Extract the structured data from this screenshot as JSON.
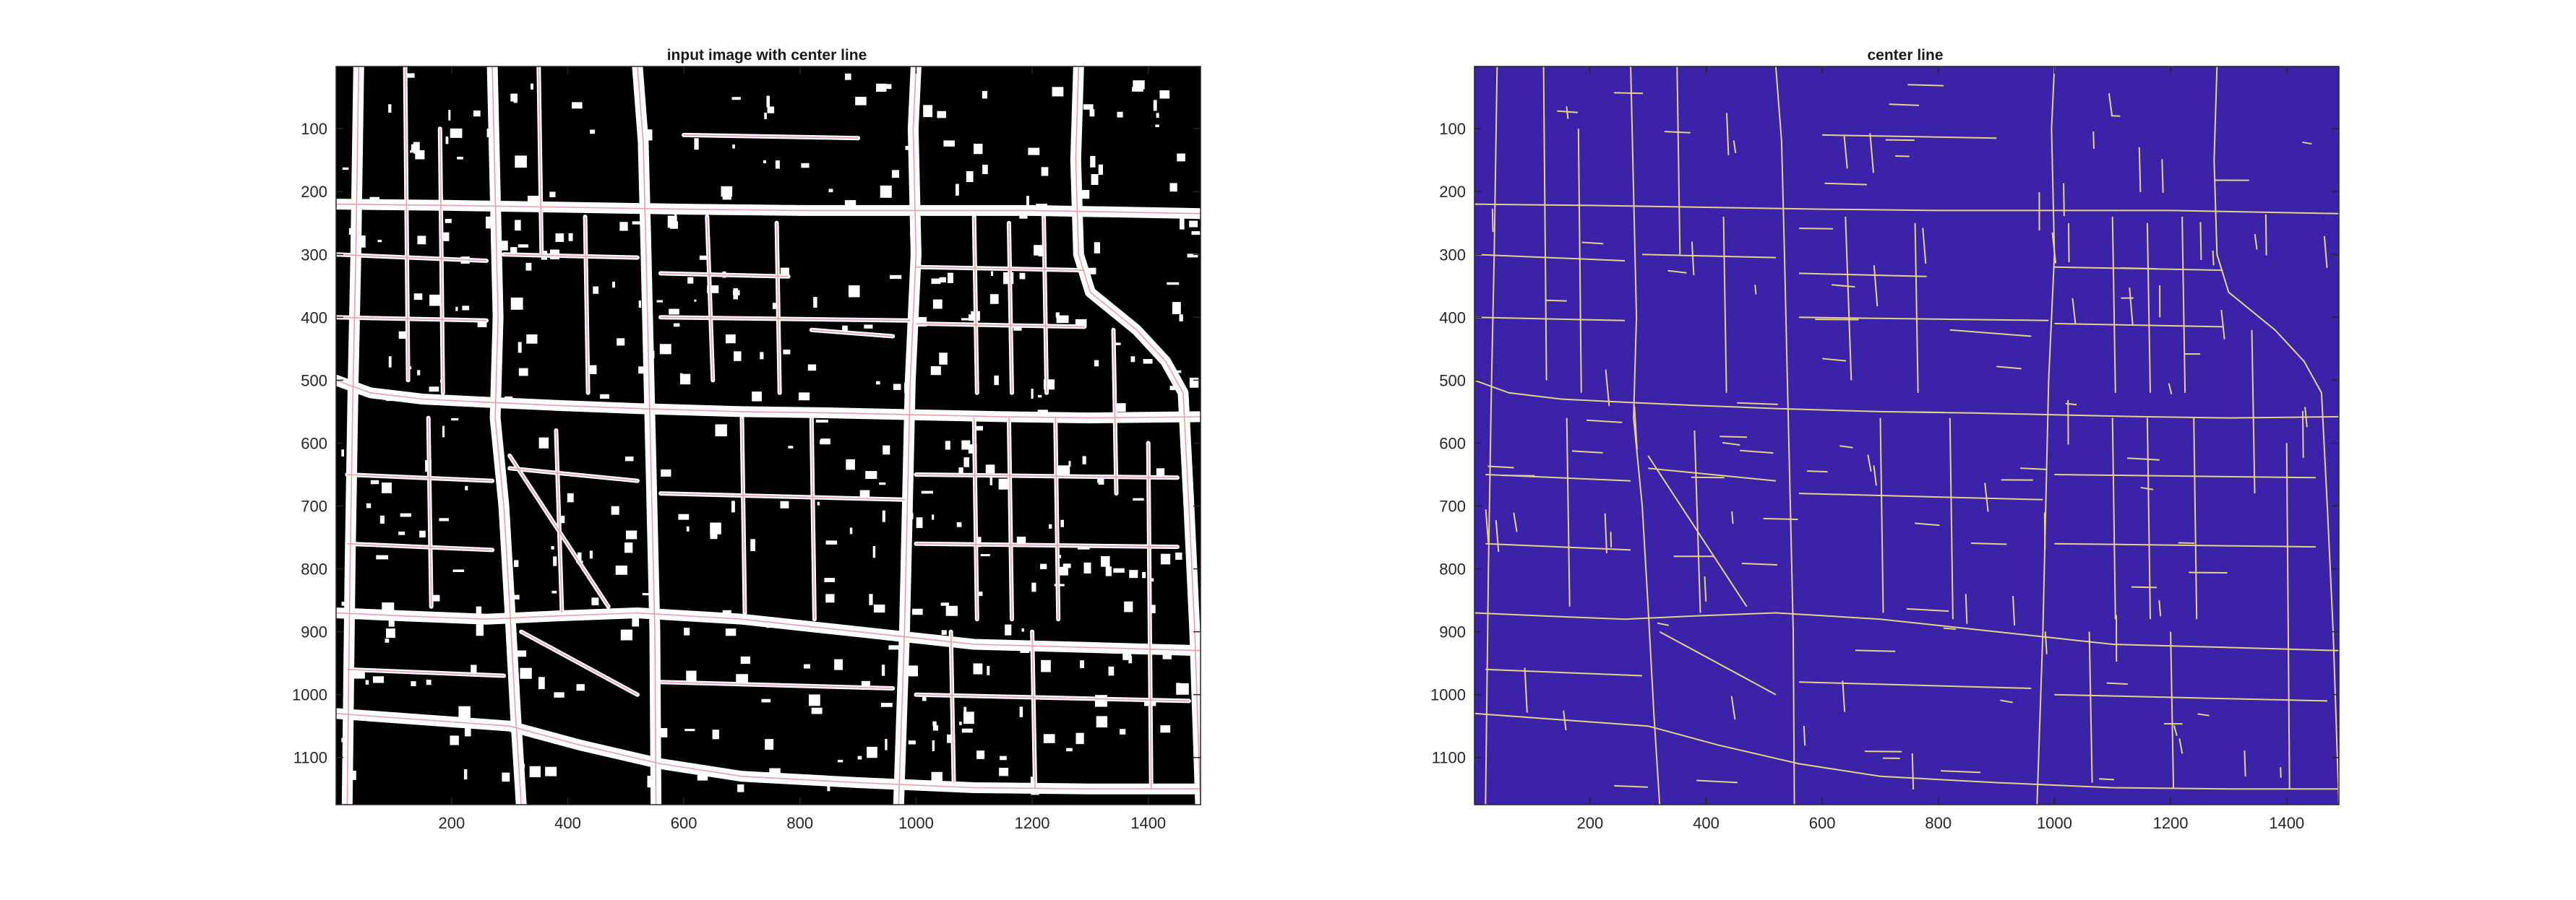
{
  "figure": {
    "background": "#ffffff",
    "axes_color": "#262626"
  },
  "chart_data": [
    {
      "type": "image",
      "title": "input image with center line",
      "xlabel": "",
      "ylabel": "",
      "xlim": [
        1,
        1490
      ],
      "ylim": [
        1,
        1175
      ],
      "y_reversed": true,
      "xticks": [
        200,
        400,
        600,
        800,
        1000,
        1200,
        1400
      ],
      "yticks": [
        100,
        200,
        300,
        400,
        500,
        600,
        700,
        800,
        900,
        1000,
        1100
      ],
      "background_color": "#000000",
      "road_color": "#ffffff",
      "centerline_color": "#e8a0a8",
      "grid": false,
      "legend": "none"
    },
    {
      "type": "image",
      "title": "center line",
      "xlabel": "",
      "ylabel": "",
      "xlim": [
        1,
        1490
      ],
      "ylim": [
        1,
        1175
      ],
      "y_reversed": true,
      "xticks": [
        200,
        400,
        600,
        800,
        1000,
        1200,
        1400
      ],
      "yticks": [
        100,
        200,
        300,
        400,
        500,
        600,
        700,
        800,
        900,
        1000,
        1100
      ],
      "background_color": "#3b22a8",
      "centerline_color": "#e3d38a",
      "grid": false,
      "legend": "none"
    }
  ]
}
